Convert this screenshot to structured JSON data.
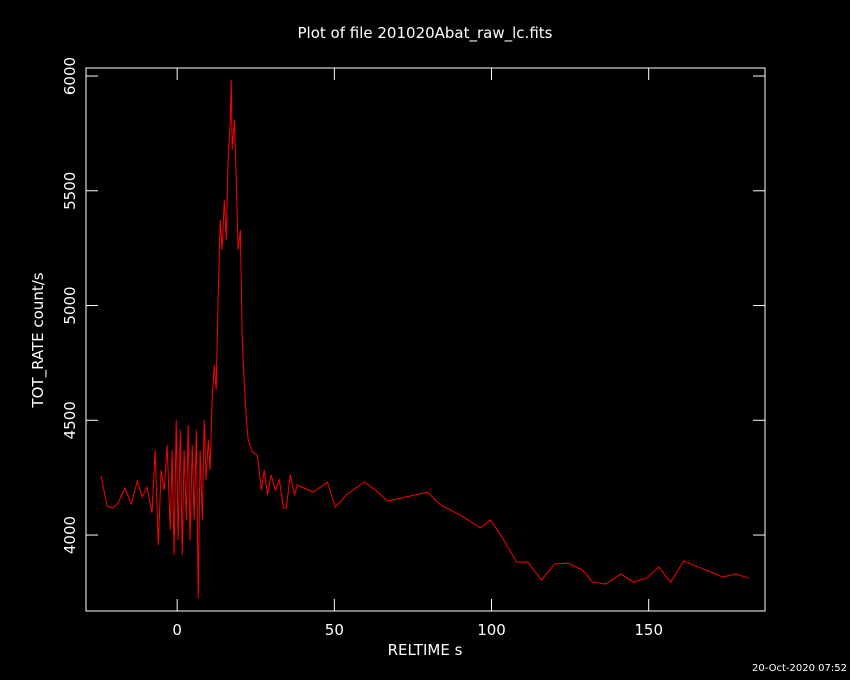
{
  "chart_data": {
    "type": "line",
    "title": "Plot of file 201020Abat_raw_lc.fits",
    "xlabel": "RELTIME  s",
    "ylabel": "TOT_RATE  count/s",
    "timestamp": "20-Oct-2020 07:52",
    "xlim": [
      -29,
      187
    ],
    "ylim": [
      3669,
      6035
    ],
    "xticks": [
      0,
      50,
      100,
      150
    ],
    "yticks": [
      4000,
      4500,
      5000,
      5500,
      6000
    ],
    "series": [
      {
        "name": "TOT_RATE",
        "color": "#ff0000",
        "x": [
          -24.2,
          -22.3,
          -20.4,
          -18.8,
          -16.6,
          -14.6,
          -12.7,
          -11.1,
          -9.6,
          -8,
          -7,
          -6,
          -5.1,
          -4.1,
          -3.2,
          -2.2,
          -1.6,
          -1,
          -0.3,
          0.3,
          1,
          1.6,
          2.2,
          2.9,
          3.5,
          4.1,
          4.8,
          5.4,
          6.1,
          6.7,
          7.3,
          8,
          8.6,
          9.2,
          9.9,
          10.5,
          11.1,
          11.8,
          12.4,
          13.1,
          13.7,
          14.3,
          15,
          15.6,
          16.2,
          16.9,
          17.2,
          17.5,
          18.2,
          18.8,
          19.4,
          20.1,
          20.7,
          21.3,
          22,
          22.6,
          23.9,
          25.5,
          26.8,
          27.7,
          28.7,
          29.9,
          31.2,
          32.5,
          33.8,
          34.7,
          36,
          37.3,
          38.2,
          43.3,
          47.8,
          50.3,
          54.1,
          59.6,
          63.1,
          66.9,
          79.6,
          83.8,
          90.1,
          96.5,
          99.7,
          102.9,
          108,
          111.5,
          115.9,
          120.1,
          124.2,
          129,
          132.2,
          136.3,
          141.1,
          145.2,
          149.4,
          153.2,
          157,
          161.1,
          166.6,
          169.1,
          173.6,
          177.7,
          181.8
        ],
        "values": [
          4257,
          4126,
          4118,
          4139,
          4205,
          4135,
          4235,
          4166,
          4209,
          4096,
          4370,
          3956,
          4283,
          4196,
          4392,
          4022,
          4370,
          3913,
          4501,
          3978,
          4458,
          3913,
          4370,
          4065,
          4479,
          3978,
          4392,
          4065,
          4458,
          3725,
          4370,
          4065,
          4501,
          4240,
          4414,
          4283,
          4588,
          4741,
          4632,
          5068,
          5373,
          5242,
          5460,
          5286,
          5635,
          5809,
          5983,
          5678,
          5809,
          5547,
          5242,
          5329,
          4850,
          4676,
          4501,
          4414,
          4362,
          4349,
          4196,
          4283,
          4174,
          4262,
          4196,
          4240,
          4118,
          4118,
          4262,
          4174,
          4218,
          4187,
          4231,
          4122,
          4179,
          4231,
          4196,
          4148,
          4187,
          4131,
          4087,
          4031,
          4065,
          4000,
          3882,
          3882,
          3804,
          3874,
          3878,
          3847,
          3795,
          3786,
          3830,
          3795,
          3813,
          3861,
          3795,
          3887,
          3856,
          3843,
          3817,
          3830,
          3813
        ]
      }
    ]
  }
}
